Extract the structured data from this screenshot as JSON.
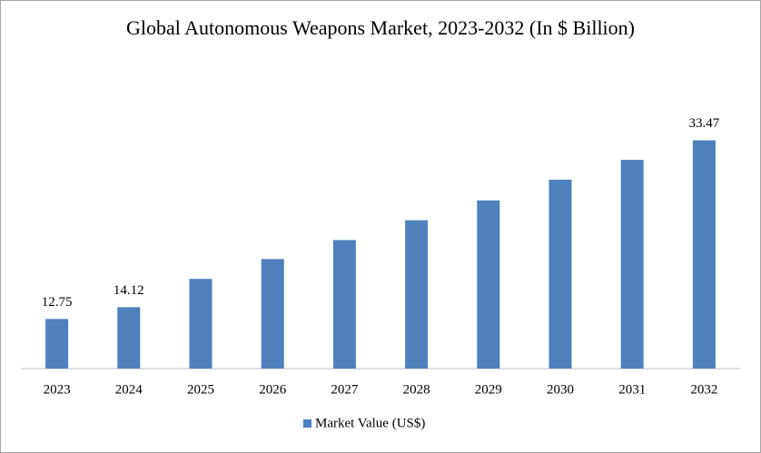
{
  "chart_data": {
    "type": "bar",
    "title": "Global Autonomous Weapons Market, 2023-2032 (In $ Billion)",
    "categories": [
      "2023",
      "2024",
      "2025",
      "2026",
      "2027",
      "2028",
      "2029",
      "2030",
      "2031",
      "2032"
    ],
    "series": [
      {
        "name": "Market Value (US$)",
        "color": "#4f81bd",
        "values": [
          12.75,
          14.12,
          17.4,
          19.7,
          21.9,
          24.2,
          26.5,
          28.9,
          31.2,
          33.47
        ],
        "value_labels": [
          "12.75",
          "14.12",
          null,
          null,
          null,
          null,
          null,
          null,
          null,
          "33.47"
        ]
      }
    ],
    "ylim": [
      7,
      36
    ],
    "legend": "bottom"
  }
}
